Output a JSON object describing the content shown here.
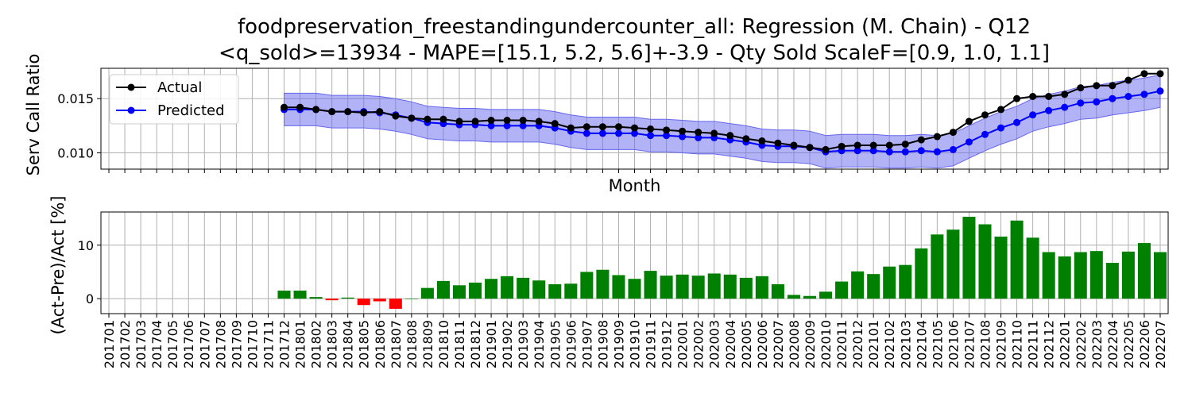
{
  "chart_data": [
    {
      "type": "line",
      "title": "foodpreservation_freestandingundercounter_all: Regression (M. Chain) - Q12",
      "subtitle": "<q_sold>=13934 - MAPE=[15.1, 5.2, 5.6]+-3.9 - Qty Sold ScaleF=[0.9, 1.0, 1.1]",
      "xlabel": "Month",
      "ylabel": "Serv Call Ratio",
      "ylim": [
        0.0085,
        0.0178
      ],
      "yticks": [
        0.01,
        0.015
      ],
      "ytick_labels": [
        "0.010",
        "0.015"
      ],
      "grid": true,
      "legend": "top-left",
      "x": [
        "201701",
        "201702",
        "201703",
        "201704",
        "201705",
        "201706",
        "201707",
        "201708",
        "201709",
        "201710",
        "201711",
        "201712",
        "201801",
        "201802",
        "201803",
        "201804",
        "201805",
        "201806",
        "201807",
        "201808",
        "201809",
        "201810",
        "201811",
        "201812",
        "201901",
        "201902",
        "201903",
        "201904",
        "201905",
        "201906",
        "201907",
        "201908",
        "201909",
        "201910",
        "201911",
        "201912",
        "202001",
        "202002",
        "202003",
        "202004",
        "202005",
        "202006",
        "202007",
        "202008",
        "202009",
        "202010",
        "202011",
        "202012",
        "202101",
        "202102",
        "202103",
        "202104",
        "202105",
        "202106",
        "202107",
        "202108",
        "202109",
        "202110",
        "202111",
        "202112",
        "202201",
        "202202",
        "202203",
        "202204",
        "202205",
        "202206",
        "202207"
      ],
      "series": [
        {
          "name": "Actual",
          "color": "#000000",
          "values": [
            null,
            null,
            null,
            null,
            null,
            null,
            null,
            null,
            null,
            null,
            null,
            0.0142,
            0.0142,
            0.014,
            0.0138,
            0.0138,
            0.0137,
            0.0138,
            0.0134,
            0.0132,
            0.0131,
            0.0131,
            0.0129,
            0.0129,
            0.013,
            0.013,
            0.013,
            0.0129,
            0.0127,
            0.0123,
            0.0124,
            0.0124,
            0.0124,
            0.0123,
            0.0122,
            0.0121,
            0.012,
            0.0119,
            0.0118,
            0.0116,
            0.0113,
            0.0111,
            0.0109,
            0.0107,
            0.0105,
            0.0103,
            0.0106,
            0.0107,
            0.0107,
            0.0107,
            0.0108,
            0.0112,
            0.0115,
            0.0119,
            0.0129,
            0.0135,
            0.014,
            0.015,
            0.0152,
            0.0152,
            0.0154,
            0.016,
            0.0162,
            0.0162,
            0.0167,
            0.0173,
            0.0173
          ]
        },
        {
          "name": "Predicted",
          "color": "#0000ff",
          "band_color": "#6666ee",
          "band": 0.0015,
          "values": [
            null,
            null,
            null,
            null,
            null,
            null,
            null,
            null,
            null,
            null,
            null,
            0.014,
            0.014,
            0.014,
            0.0138,
            0.0138,
            0.0138,
            0.0137,
            0.0135,
            0.0132,
            0.0128,
            0.0127,
            0.0126,
            0.0126,
            0.0125,
            0.0125,
            0.0125,
            0.0125,
            0.0123,
            0.012,
            0.0118,
            0.0118,
            0.0118,
            0.0118,
            0.0116,
            0.0116,
            0.0115,
            0.0114,
            0.0114,
            0.0112,
            0.011,
            0.0107,
            0.0106,
            0.0106,
            0.0105,
            0.0101,
            0.0102,
            0.0102,
            0.0102,
            0.0101,
            0.0101,
            0.0102,
            0.0101,
            0.0103,
            0.011,
            0.0117,
            0.0123,
            0.0128,
            0.0135,
            0.0139,
            0.0142,
            0.0146,
            0.0147,
            0.015,
            0.0152,
            0.0154,
            0.0157
          ]
        }
      ]
    },
    {
      "type": "bar",
      "xlabel": "",
      "ylabel": "(Act-Pre)/Act [%]",
      "ylim": [
        -2.8,
        16.2
      ],
      "yticks": [
        0,
        10
      ],
      "ytick_labels": [
        "0",
        "10"
      ],
      "grid": true,
      "positive_color": "#008000",
      "negative_color": "#ff0000",
      "categories": [
        "201701",
        "201702",
        "201703",
        "201704",
        "201705",
        "201706",
        "201707",
        "201708",
        "201709",
        "201710",
        "201711",
        "201712",
        "201801",
        "201802",
        "201803",
        "201804",
        "201805",
        "201806",
        "201807",
        "201808",
        "201809",
        "201810",
        "201811",
        "201812",
        "201901",
        "201902",
        "201903",
        "201904",
        "201905",
        "201906",
        "201907",
        "201908",
        "201909",
        "201910",
        "201911",
        "201912",
        "202001",
        "202002",
        "202003",
        "202004",
        "202005",
        "202006",
        "202007",
        "202008",
        "202009",
        "202010",
        "202011",
        "202012",
        "202101",
        "202102",
        "202103",
        "202104",
        "202105",
        "202106",
        "202107",
        "202108",
        "202109",
        "202110",
        "202111",
        "202112",
        "202201",
        "202202",
        "202203",
        "202204",
        "202205",
        "202206",
        "202207"
      ],
      "values": [
        null,
        null,
        null,
        null,
        null,
        null,
        null,
        null,
        null,
        null,
        null,
        1.5,
        1.5,
        0.3,
        -0.3,
        0.2,
        -1.2,
        -0.5,
        -1.9,
        0.0,
        2.0,
        3.3,
        2.5,
        3.0,
        3.7,
        4.2,
        3.9,
        3.4,
        2.7,
        2.8,
        5.0,
        5.4,
        4.4,
        3.7,
        5.2,
        4.3,
        4.5,
        4.3,
        4.7,
        4.5,
        3.9,
        4.2,
        2.7,
        0.7,
        0.5,
        1.3,
        3.2,
        5.1,
        4.6,
        6.0,
        6.3,
        9.4,
        12.0,
        12.9,
        15.3,
        13.9,
        11.6,
        14.6,
        11.4,
        8.7,
        7.9,
        8.7,
        8.9,
        6.7,
        8.8,
        10.4,
        8.7
      ]
    }
  ]
}
